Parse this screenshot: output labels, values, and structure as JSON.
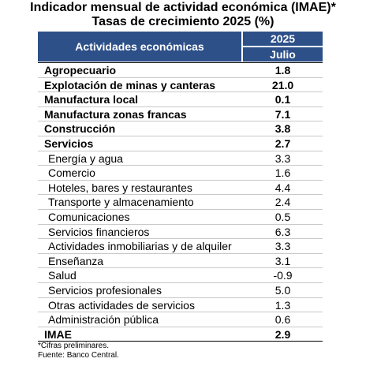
{
  "title_line1": "Indicador mensual de actividad económica (IMAE)*",
  "title_line2": "Tasas de crecimiento 2025 (%)",
  "header": {
    "activities": "Actividades económicas",
    "year": "2025",
    "month": "Julio"
  },
  "rows": [
    {
      "label": "Agropecuario",
      "value": "1.8",
      "bold": true,
      "sub": false
    },
    {
      "label": "Explotación de minas y canteras",
      "value": "21.0",
      "bold": true,
      "sub": false
    },
    {
      "label": "Manufactura local",
      "value": "0.1",
      "bold": true,
      "sub": false
    },
    {
      "label": "Manufactura zonas francas",
      "value": "7.1",
      "bold": true,
      "sub": false
    },
    {
      "label": "Construcción",
      "value": "3.8",
      "bold": true,
      "sub": false
    },
    {
      "label": "Servicios",
      "value": "2.7",
      "bold": true,
      "sub": false
    },
    {
      "label": "Energía y agua",
      "value": "3.3",
      "bold": false,
      "sub": true
    },
    {
      "label": "Comercio",
      "value": "1.6",
      "bold": false,
      "sub": true
    },
    {
      "label": "Hoteles, bares y restaurantes",
      "value": "4.4",
      "bold": false,
      "sub": true
    },
    {
      "label": "Transporte y almacenamiento",
      "value": "2.4",
      "bold": false,
      "sub": true
    },
    {
      "label": "Comunicaciones",
      "value": "0.5",
      "bold": false,
      "sub": true
    },
    {
      "label": "Servicios financieros",
      "value": "6.3",
      "bold": false,
      "sub": true
    },
    {
      "label": "Actividades inmobiliarias y de alquiler",
      "value": "3.3",
      "bold": false,
      "sub": true
    },
    {
      "label": "Enseñanza",
      "value": "3.1",
      "bold": false,
      "sub": true
    },
    {
      "label": "Salud",
      "value": "-0.9",
      "bold": false,
      "sub": true
    },
    {
      "label": "Servicios profesionales",
      "value": "5.0",
      "bold": false,
      "sub": true
    },
    {
      "label": "Otras actividades de servicios",
      "value": "1.3",
      "bold": false,
      "sub": true
    },
    {
      "label": "Administración pública",
      "value": "0.6",
      "bold": false,
      "sub": true
    },
    {
      "label": "IMAE",
      "value": "2.9",
      "bold": true,
      "sub": false,
      "total": true
    }
  ],
  "notes": {
    "preliminary": "*Cifras preliminares.",
    "source": "Fuente: Banco Central."
  }
}
